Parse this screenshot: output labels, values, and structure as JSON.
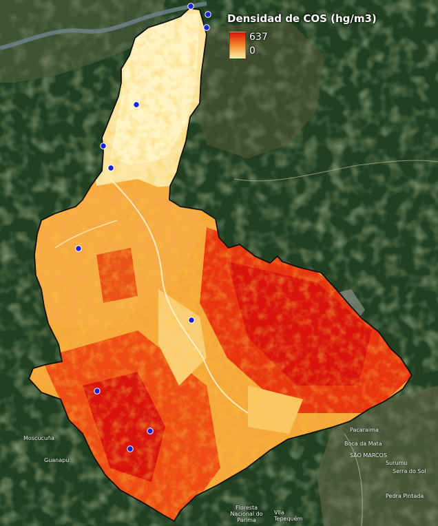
{
  "legend": {
    "title": "Densidad de COS (hg/m3)",
    "max_label": "637",
    "min_label": "0",
    "color_max": "#d9140c",
    "color_min": "#fff2b0"
  },
  "places": [
    {
      "id": "mosucurua",
      "label": "Moscucuña"
    },
    {
      "id": "guanapu",
      "label": "Guanapu"
    },
    {
      "id": "pacaraima",
      "label": "Pacaraima"
    },
    {
      "id": "boca-da-mata",
      "label": "Boca da Mata"
    },
    {
      "id": "sao-marcos",
      "label": "SÃO MARCOS"
    },
    {
      "id": "surumu",
      "label": "Surumu"
    },
    {
      "id": "flona",
      "label": "Floresta Nacional do Parima"
    },
    {
      "id": "vila-tepequem",
      "label": "Vila Tepequém"
    },
    {
      "id": "pedra-pintada",
      "label": "Pedra Pintada"
    },
    {
      "id": "serra-do-sol",
      "label": "Serra do Sol"
    }
  ],
  "colors": {
    "forest": "#21401f",
    "border": "#111111",
    "station": "#1b22d6"
  },
  "stations_count": 12
}
